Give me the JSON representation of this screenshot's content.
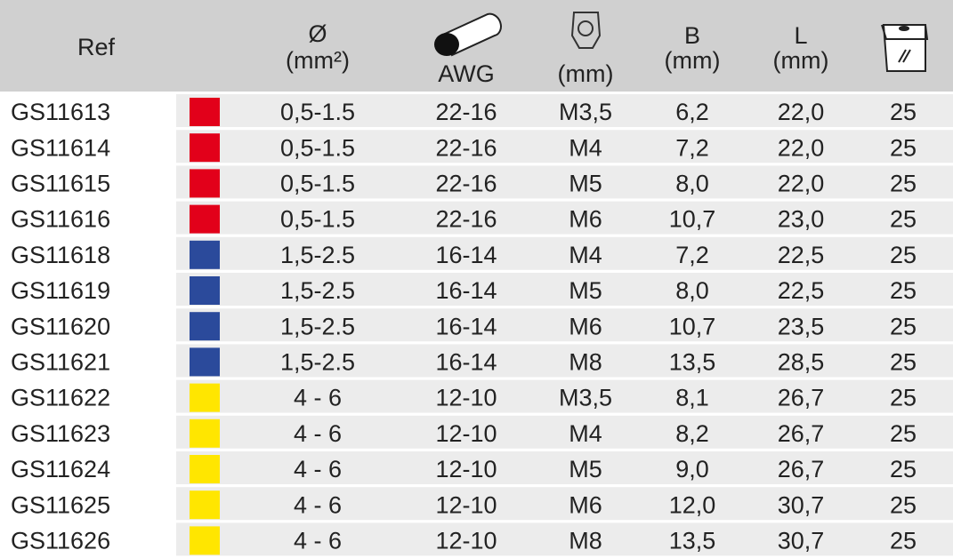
{
  "header": {
    "ref": "Ref",
    "diameter": "Ø",
    "diameter_unit": "(mm²)",
    "awg": "AWG",
    "hole_unit": "(mm)",
    "b": "B",
    "b_unit": "(mm)",
    "l": "L",
    "l_unit": "(mm)"
  },
  "table": {
    "rows": [
      {
        "ref": "GS11613",
        "color": "#e2001a",
        "section": "0,5-1.5",
        "awg": "22-16",
        "stud": "M3,5",
        "b": "6,2",
        "l": "22,0",
        "qty": "25"
      },
      {
        "ref": "GS11614",
        "color": "#e2001a",
        "section": "0,5-1.5",
        "awg": "22-16",
        "stud": "M4",
        "b": "7,2",
        "l": "22,0",
        "qty": "25"
      },
      {
        "ref": "GS11615",
        "color": "#e2001a",
        "section": "0,5-1.5",
        "awg": "22-16",
        "stud": "M5",
        "b": "8,0",
        "l": "22,0",
        "qty": "25"
      },
      {
        "ref": "GS11616",
        "color": "#e2001a",
        "section": "0,5-1.5",
        "awg": "22-16",
        "stud": "M6",
        "b": "10,7",
        "l": "23,0",
        "qty": "25"
      },
      {
        "ref": "GS11618",
        "color": "#2b4a9b",
        "section": "1,5-2.5",
        "awg": "16-14",
        "stud": "M4",
        "b": "7,2",
        "l": "22,5",
        "qty": "25"
      },
      {
        "ref": "GS11619",
        "color": "#2b4a9b",
        "section": "1,5-2.5",
        "awg": "16-14",
        "stud": "M5",
        "b": "8,0",
        "l": "22,5",
        "qty": "25"
      },
      {
        "ref": "GS11620",
        "color": "#2b4a9b",
        "section": "1,5-2.5",
        "awg": "16-14",
        "stud": "M6",
        "b": "10,7",
        "l": "23,5",
        "qty": "25"
      },
      {
        "ref": "GS11621",
        "color": "#2b4a9b",
        "section": "1,5-2.5",
        "awg": "16-14",
        "stud": "M8",
        "b": "13,5",
        "l": "28,5",
        "qty": "25"
      },
      {
        "ref": "GS11622",
        "color": "#ffe600",
        "section": "4 - 6",
        "awg": "12-10",
        "stud": "M3,5",
        "b": "8,1",
        "l": "26,7",
        "qty": "25"
      },
      {
        "ref": "GS11623",
        "color": "#ffe600",
        "section": "4 - 6",
        "awg": "12-10",
        "stud": "M4",
        "b": "8,2",
        "l": "26,7",
        "qty": "25"
      },
      {
        "ref": "GS11624",
        "color": "#ffe600",
        "section": "4 - 6",
        "awg": "12-10",
        "stud": "M5",
        "b": "9,0",
        "l": "26,7",
        "qty": "25"
      },
      {
        "ref": "GS11625",
        "color": "#ffe600",
        "section": "4 - 6",
        "awg": "12-10",
        "stud": "M6",
        "b": "12,0",
        "l": "30,7",
        "qty": "25"
      },
      {
        "ref": "GS11626",
        "color": "#ffe600",
        "section": "4 - 6",
        "awg": "12-10",
        "stud": "M8",
        "b": "13,5",
        "l": "30,7",
        "qty": "25"
      }
    ]
  }
}
